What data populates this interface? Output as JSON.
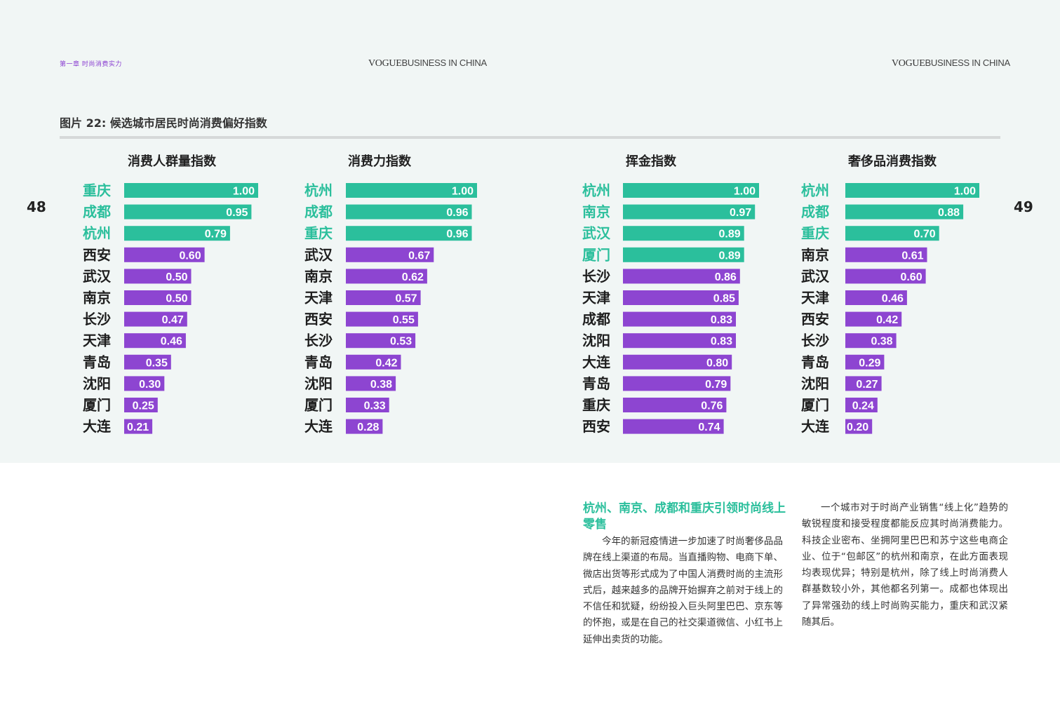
{
  "header": {
    "chapter": "第一章  时尚消费实力",
    "brand_left_bold": "VOGUE",
    "brand_left_light": "BUSINESS IN CHINA",
    "brand_right_bold": "VOGUE",
    "brand_right_light": "BUSINESS IN CHINA"
  },
  "figure_title": "图片 22: 候选城市居民时尚消费偏好指数",
  "page_numbers": {
    "left": "48",
    "right": "49"
  },
  "colors": {
    "highlight": "#2bbf9c",
    "regular": "#8d45d1",
    "panel": "#f1f6f5"
  },
  "chart_data": [
    {
      "type": "bar",
      "title": "消费人群量指数",
      "highlight_top": 3,
      "categories": [
        "重庆",
        "成都",
        "杭州",
        "西安",
        "武汉",
        "南京",
        "长沙",
        "天津",
        "青岛",
        "沈阳",
        "厦门",
        "大连"
      ],
      "values": [
        1.0,
        0.95,
        0.79,
        0.6,
        0.5,
        0.5,
        0.47,
        0.46,
        0.35,
        0.3,
        0.25,
        0.21
      ],
      "labels": [
        "1.00",
        "0.95",
        "0.79",
        "0.60",
        "0.50",
        "0.50",
        "0.47",
        "0.46",
        "0.35",
        "0.30",
        "0.25",
        "0.21"
      ]
    },
    {
      "type": "bar",
      "title": "消费力指数",
      "highlight_top": 3,
      "categories": [
        "杭州",
        "成都",
        "重庆",
        "武汉",
        "南京",
        "天津",
        "西安",
        "长沙",
        "青岛",
        "沈阳",
        "厦门",
        "大连"
      ],
      "values": [
        1.0,
        0.96,
        0.96,
        0.67,
        0.62,
        0.57,
        0.55,
        0.53,
        0.42,
        0.38,
        0.33,
        0.28
      ],
      "labels": [
        "1.00",
        "0.96",
        "0.96",
        "0.67",
        "0.62",
        "0.57",
        "0.55",
        "0.53",
        "0.42",
        "0.38",
        "0.33",
        "0.28"
      ]
    },
    {
      "type": "bar",
      "title": "挥金指数",
      "highlight_top": 4,
      "categories": [
        "杭州",
        "南京",
        "武汉",
        "厦门",
        "长沙",
        "天津",
        "成都",
        "沈阳",
        "大连",
        "青岛",
        "重庆",
        "西安"
      ],
      "values": [
        1.0,
        0.97,
        0.89,
        0.89,
        0.86,
        0.85,
        0.83,
        0.83,
        0.8,
        0.79,
        0.76,
        0.74
      ],
      "labels": [
        "1.00",
        "0.97",
        "0.89",
        "0.89",
        "0.86",
        "0.85",
        "0.83",
        "0.83",
        "0.80",
        "0.79",
        "0.76",
        "0.74"
      ]
    },
    {
      "type": "bar",
      "title": "奢侈品消费指数",
      "highlight_top": 3,
      "categories": [
        "杭州",
        "成都",
        "重庆",
        "南京",
        "武汉",
        "天津",
        "西安",
        "长沙",
        "青岛",
        "沈阳",
        "厦门",
        "大连"
      ],
      "values": [
        1.0,
        0.88,
        0.7,
        0.61,
        0.6,
        0.46,
        0.42,
        0.38,
        0.29,
        0.27,
        0.24,
        0.2
      ],
      "labels": [
        "1.00",
        "0.88",
        "0.70",
        "0.61",
        "0.60",
        "0.46",
        "0.42",
        "0.38",
        "0.29",
        "0.27",
        "0.24",
        "0.20"
      ]
    }
  ],
  "article": {
    "heading": "杭州、南京、成都和重庆引领时尚线上零售",
    "para1": "今年的新冠疫情进一步加速了时尚奢侈品品牌在线上渠道的布局。当直播购物、电商下单、微店出货等形式成为了中国人消费时尚的主流形式后，越来越多的品牌开始摒弃之前对于线上的不信任和犹疑，纷纷投入巨头阿里巴巴、京东等的怀抱，或是在自己的社交渠道微信、小红书上延伸出卖货的功能。",
    "para2": "一个城市对于时尚产业销售“线上化”趋势的敏锐程度和接受程度都能反应其时尚消费能力。科技企业密布、坐拥阿里巴巴和苏宁这些电商企业、位于“包邮区”的杭州和南京，在此方面表现均表现优异；特别是杭州，除了线上时尚消费人群基数较小外，其他都名列第一。成都也体现出了异常强劲的线上时尚购买能力，重庆和武汉紧随其后。"
  }
}
